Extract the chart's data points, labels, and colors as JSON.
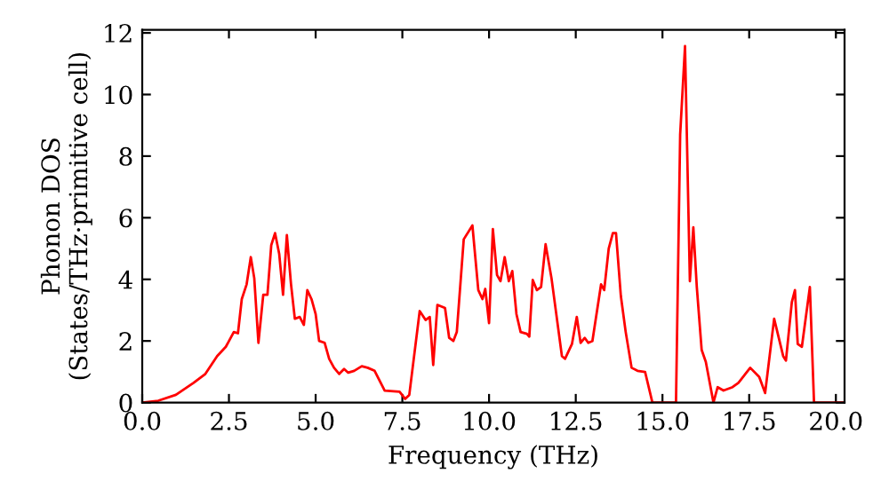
{
  "chart_data": {
    "type": "line",
    "xlabel": "Frequency (THz)",
    "ylabel": "Phonon DOS\n(States/THz·primitive cell)",
    "xlim": [
      0,
      20.25
    ],
    "ylim": [
      0,
      12.1
    ],
    "xticks": [
      {
        "value": 0,
        "label": "0.0"
      },
      {
        "value": 2.5,
        "label": "2.5"
      },
      {
        "value": 5,
        "label": "5.0"
      },
      {
        "value": 7.5,
        "label": "7.5"
      },
      {
        "value": 10,
        "label": "10.0"
      },
      {
        "value": 12.5,
        "label": "12.5"
      },
      {
        "value": 15,
        "label": "15.0"
      },
      {
        "value": 17.5,
        "label": "17.5"
      },
      {
        "value": 20,
        "label": "20.0"
      }
    ],
    "yticks": [
      0,
      2,
      4,
      6,
      8,
      10,
      12
    ],
    "grid": false,
    "legend": false,
    "series": [
      {
        "color": "#ff0000",
        "x": [
          0,
          0.46,
          0.97,
          1.48,
          1.82,
          2.16,
          2.41,
          2.64,
          2.76,
          2.87,
          3.01,
          3.13,
          3.23,
          3.35,
          3.49,
          3.61,
          3.72,
          3.83,
          3.95,
          4.06,
          4.17,
          4.29,
          4.4,
          4.54,
          4.66,
          4.76,
          4.88,
          5.0,
          5.1,
          5.26,
          5.39,
          5.53,
          5.68,
          5.82,
          5.94,
          6.11,
          6.33,
          6.5,
          6.7,
          6.99,
          7.42,
          7.58,
          7.7,
          8.0,
          8.17,
          8.29,
          8.39,
          8.51,
          8.73,
          8.85,
          8.97,
          9.07,
          9.27,
          9.52,
          9.69,
          9.81,
          9.89,
          10.0,
          10.11,
          10.23,
          10.33,
          10.45,
          10.57,
          10.67,
          10.79,
          10.91,
          11.09,
          11.16,
          11.26,
          11.38,
          11.5,
          11.63,
          11.8,
          12.1,
          12.19,
          12.39,
          12.53,
          12.64,
          12.76,
          12.86,
          12.98,
          13.23,
          13.32,
          13.45,
          13.57,
          13.66,
          13.8,
          13.94,
          14.11,
          14.28,
          14.5,
          14.71,
          15.39,
          15.51,
          15.65,
          15.79,
          15.89,
          15.99,
          16.13,
          16.25,
          16.47,
          16.59,
          16.76,
          17.02,
          17.19,
          17.53,
          17.79,
          17.96,
          18.22,
          18.48,
          18.56,
          18.73,
          18.82,
          18.9,
          19.02,
          19.25,
          19.37,
          20.25
        ],
        "values": [
          0,
          0.06,
          0.25,
          0.64,
          0.93,
          1.51,
          1.81,
          2.29,
          2.25,
          3.36,
          3.84,
          4.72,
          4.04,
          1.94,
          3.5,
          3.5,
          5.11,
          5.5,
          4.82,
          3.5,
          5.44,
          3.84,
          2.72,
          2.78,
          2.52,
          3.65,
          3.36,
          2.87,
          2.0,
          1.94,
          1.42,
          1.13,
          0.93,
          1.09,
          0.97,
          1.03,
          1.18,
          1.13,
          1.03,
          0.39,
          0.35,
          0.12,
          0.25,
          2.97,
          2.68,
          2.78,
          1.22,
          3.17,
          3.07,
          2.1,
          2.0,
          2.29,
          5.3,
          5.75,
          3.65,
          3.36,
          3.69,
          2.58,
          5.63,
          4.14,
          3.94,
          4.72,
          3.94,
          4.27,
          2.87,
          2.29,
          2.23,
          2.14,
          3.98,
          3.65,
          3.75,
          5.14,
          4.04,
          1.51,
          1.42,
          1.9,
          2.78,
          1.94,
          2.1,
          1.94,
          2.0,
          3.84,
          3.65,
          5.0,
          5.5,
          5.5,
          3.46,
          2.29,
          1.13,
          1.03,
          0.99,
          0,
          0,
          8.7,
          11.57,
          3.94,
          5.69,
          3.75,
          1.71,
          1.32,
          0,
          0.5,
          0.39,
          0.5,
          0.64,
          1.13,
          0.83,
          0.31,
          2.72,
          1.51,
          1.36,
          3.26,
          3.65,
          1.9,
          1.81,
          3.75,
          0,
          0
        ]
      }
    ]
  }
}
